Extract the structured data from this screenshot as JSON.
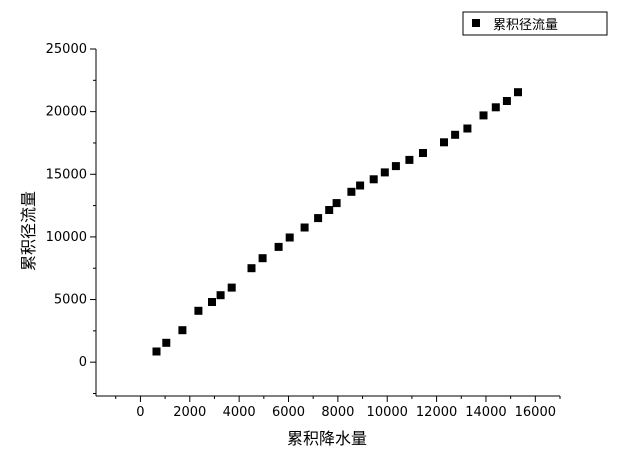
{
  "chart_data": {
    "type": "scatter",
    "title": "",
    "xlabel": "累积降水量",
    "ylabel": "累积径流量",
    "xlim": [
      -1800,
      17000
    ],
    "ylim": [
      -2700,
      25000
    ],
    "xticks": [
      0,
      2000,
      4000,
      6000,
      8000,
      10000,
      12000,
      14000,
      16000
    ],
    "yticks": [
      0,
      5000,
      10000,
      15000,
      20000,
      25000
    ],
    "xtick_labels": [
      "0",
      "2000",
      "4000",
      "6000",
      "8000",
      "10000",
      "12000",
      "14000",
      "16000"
    ],
    "ytick_labels": [
      "0",
      "5000",
      "10000",
      "15000",
      "20000",
      "25000"
    ],
    "grid": false,
    "legend_position": "top-right",
    "marker": "square",
    "marker_color": "#000000",
    "series": [
      {
        "name": "累积径流量",
        "points": [
          [
            650,
            850
          ],
          [
            1050,
            1550
          ],
          [
            1700,
            2550
          ],
          [
            2350,
            4100
          ],
          [
            2900,
            4800
          ],
          [
            3250,
            5350
          ],
          [
            3700,
            5950
          ],
          [
            4500,
            7500
          ],
          [
            4950,
            8300
          ],
          [
            5600,
            9200
          ],
          [
            6050,
            9950
          ],
          [
            6650,
            10750
          ],
          [
            7200,
            11500
          ],
          [
            7650,
            12150
          ],
          [
            7950,
            12700
          ],
          [
            8550,
            13600
          ],
          [
            8900,
            14100
          ],
          [
            9450,
            14600
          ],
          [
            9900,
            15150
          ],
          [
            10350,
            15650
          ],
          [
            10900,
            16150
          ],
          [
            11450,
            16700
          ],
          [
            12300,
            17550
          ],
          [
            12750,
            18150
          ],
          [
            13250,
            18650
          ],
          [
            13900,
            19700
          ],
          [
            14400,
            20350
          ],
          [
            14850,
            20850
          ],
          [
            15300,
            21550
          ]
        ]
      }
    ]
  }
}
